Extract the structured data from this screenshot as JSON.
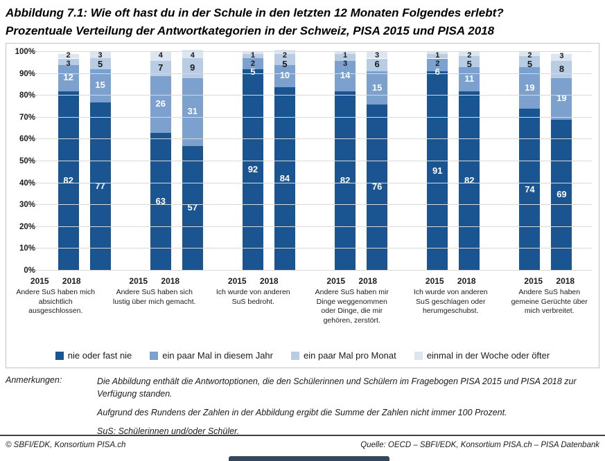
{
  "title": {
    "line1": "Abbildung 7.1: Wie oft hast du in der Schule in den letzten 12 Monaten Folgendes erlebt?",
    "line2": "Prozentuale Verteilung der Antwortkategorien in der Schweiz, PISA 2015 und PISA 2018"
  },
  "chart_data": {
    "type": "bar",
    "stacked": true,
    "unit": "percent",
    "ylim": [
      0,
      100
    ],
    "grid": "horizontal",
    "legend_position": "bottom",
    "yticks": [
      "0%",
      "10%",
      "20%",
      "30%",
      "40%",
      "50%",
      "60%",
      "70%",
      "80%",
      "90%",
      "100%"
    ],
    "years": [
      "2015",
      "2018"
    ],
    "legend": [
      {
        "label": "nie oder fast nie",
        "color": "#1A5591"
      },
      {
        "label": "ein paar Mal in diesem Jahr",
        "color": "#7CA1CE"
      },
      {
        "label": "ein paar Mal pro Monat",
        "color": "#B8CCE4"
      },
      {
        "label": "einmal in der Woche oder öfter",
        "color": "#DCE6F1"
      }
    ],
    "groups": [
      {
        "label": "Andere SuS haben mich absichtlich ausgeschlossen.",
        "values_2015": [
          82,
          12,
          3,
          2
        ],
        "values_2018": [
          77,
          15,
          5,
          3
        ]
      },
      {
        "label": "Andere SuS haben sich lustig über mich gemacht.",
        "values_2015": [
          63,
          26,
          7,
          4
        ],
        "values_2018": [
          57,
          31,
          9,
          4
        ]
      },
      {
        "label": "Ich wurde von anderen SuS bedroht.",
        "values_2015": [
          92,
          5,
          2,
          1
        ],
        "values_2018": [
          84,
          10,
          5,
          2
        ]
      },
      {
        "label": "Andere SuS haben mir Dinge weggenommen oder Dinge, die mir gehören, zerstört.",
        "values_2015": [
          82,
          14,
          3,
          1
        ],
        "values_2018": [
          76,
          15,
          6,
          3
        ]
      },
      {
        "label": "Ich wurde von anderen SuS geschlagen oder herumgeschubst.",
        "values_2015": [
          91,
          6,
          2,
          1
        ],
        "values_2018": [
          82,
          11,
          5,
          2
        ]
      },
      {
        "label": "Andere SuS haben gemeine Gerüchte über mich verbreitet.",
        "values_2015": [
          74,
          19,
          5,
          2
        ],
        "values_2018": [
          69,
          19,
          8,
          3
        ]
      }
    ]
  },
  "notes": {
    "label": "Anmerkungen:",
    "items": [
      "Die Abbildung enthält die Antwortoptionen, die den Schülerinnen und Schülern im Fragebogen PISA 2015 und PISA 2018 zur Verfügung standen.",
      "Aufgrund des Rundens der Zahlen in der Abbildung ergibt die Summe der Zahlen nicht immer 100 Prozent.",
      "SuS: Schülerinnen und/oder Schüler."
    ]
  },
  "footer": {
    "left": "© SBFI/EDK, Konsortium PISA.ch",
    "right": "Quelle: OECD – SBFI/EDK, Konsortium PISA.ch – PISA Datenbank"
  }
}
